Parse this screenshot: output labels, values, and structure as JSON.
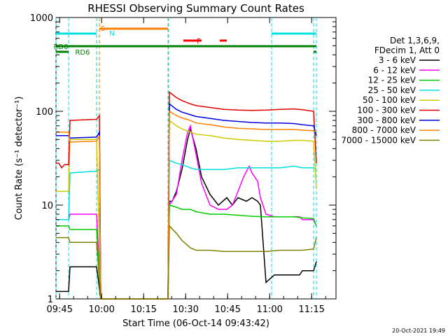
{
  "chart_data": {
    "type": "line",
    "title": "RHESSI Observing Summary Count Rates",
    "xlabel": "Start Time (06-Oct-14 09:43:42)",
    "ylabel": "Count Rate (s⁻¹ detector⁻¹)",
    "y_scale": "log",
    "ylim": [
      1,
      1000
    ],
    "xlim_minutes": [
      0,
      100
    ],
    "x_ticks": [
      {
        "label": "09:45",
        "t": 1.3
      },
      {
        "label": "10:00",
        "t": 16.3
      },
      {
        "label": "10:15",
        "t": 31.3
      },
      {
        "label": "10:30",
        "t": 46.3
      },
      {
        "label": "10:45",
        "t": 61.3
      },
      {
        "label": "11:00",
        "t": 76.3
      },
      {
        "label": "11:15",
        "t": 91.3
      }
    ],
    "y_ticks": [
      {
        "label": "1",
        "v": 1
      },
      {
        "label": "10",
        "v": 10
      },
      {
        "label": "100",
        "v": 100
      },
      {
        "label": "1000",
        "v": 1000
      }
    ],
    "legend": {
      "header": [
        "Det 1,3,6,9,",
        "FDecim 1, Att 0"
      ],
      "position": "right"
    },
    "series": [
      {
        "name": "3 - 6 keV",
        "color": "#000000",
        "points": [
          [
            0,
            1.2
          ],
          [
            4.5,
            1.2
          ],
          [
            5,
            2.2
          ],
          [
            14.5,
            2.2
          ],
          [
            16,
            1
          ],
          [
            40,
            1
          ],
          [
            40.5,
            11
          ],
          [
            41.5,
            11
          ],
          [
            43,
            14
          ],
          [
            45,
            24
          ],
          [
            47,
            50
          ],
          [
            48,
            65
          ],
          [
            50,
            40
          ],
          [
            52,
            20
          ],
          [
            55,
            13
          ],
          [
            58,
            10
          ],
          [
            61,
            12
          ],
          [
            63,
            10
          ],
          [
            65,
            12
          ],
          [
            68,
            11
          ],
          [
            70,
            12
          ],
          [
            72,
            11
          ],
          [
            73,
            10
          ],
          [
            75,
            1.5
          ],
          [
            78,
            1.8
          ],
          [
            87,
            1.8
          ],
          [
            88,
            2
          ],
          [
            92,
            2
          ],
          [
            93,
            2.5
          ]
        ]
      },
      {
        "name": "6 - 12 keV",
        "color": "#ff00ff",
        "points": [
          [
            0,
            7
          ],
          [
            4.5,
            7
          ],
          [
            5,
            8
          ],
          [
            14.5,
            8
          ],
          [
            16,
            1
          ],
          [
            40,
            1
          ],
          [
            40.5,
            10
          ],
          [
            43,
            13
          ],
          [
            45,
            30
          ],
          [
            47,
            60
          ],
          [
            48,
            70
          ],
          [
            50,
            35
          ],
          [
            52,
            17
          ],
          [
            55,
            10
          ],
          [
            58,
            9
          ],
          [
            61,
            9
          ],
          [
            63,
            10
          ],
          [
            65,
            14
          ],
          [
            67,
            20
          ],
          [
            69,
            26
          ],
          [
            70,
            22
          ],
          [
            72,
            18
          ],
          [
            73,
            12
          ],
          [
            75,
            8
          ],
          [
            78,
            7.5
          ],
          [
            87,
            7.5
          ],
          [
            88,
            7
          ],
          [
            92,
            7
          ],
          [
            93,
            6
          ]
        ]
      },
      {
        "name": "12 - 25 keV",
        "color": "#00cc00",
        "points": [
          [
            0,
            6
          ],
          [
            4.5,
            6
          ],
          [
            5,
            5.5
          ],
          [
            14.5,
            5.5
          ],
          [
            16,
            1
          ],
          [
            40,
            1
          ],
          [
            40.5,
            10
          ],
          [
            43,
            9.5
          ],
          [
            45,
            9
          ],
          [
            48,
            9
          ],
          [
            50,
            8.5
          ],
          [
            55,
            8
          ],
          [
            60,
            8
          ],
          [
            65,
            7.8
          ],
          [
            70,
            7.6
          ],
          [
            75,
            7.5
          ],
          [
            80,
            7.5
          ],
          [
            85,
            7.5
          ],
          [
            88,
            7.3
          ],
          [
            92,
            7.2
          ],
          [
            93,
            6
          ]
        ]
      },
      {
        "name": "25 - 50 keV",
        "color": "#00e0e0",
        "points": [
          [
            0,
            7
          ],
          [
            4.5,
            7
          ],
          [
            5,
            22
          ],
          [
            14.5,
            23
          ],
          [
            15.5,
            24
          ],
          [
            16,
            1
          ],
          [
            40,
            1
          ],
          [
            40.5,
            30
          ],
          [
            43,
            28
          ],
          [
            45,
            27
          ],
          [
            48,
            25
          ],
          [
            50,
            24
          ],
          [
            55,
            24
          ],
          [
            60,
            24
          ],
          [
            65,
            25
          ],
          [
            70,
            25
          ],
          [
            75,
            25
          ],
          [
            80,
            25
          ],
          [
            85,
            26
          ],
          [
            88,
            25
          ],
          [
            92,
            25
          ],
          [
            93,
            24
          ]
        ]
      },
      {
        "name": "50 - 100 keV",
        "color": "#cccc00",
        "points": [
          [
            0,
            14
          ],
          [
            4.5,
            14
          ],
          [
            5,
            50
          ],
          [
            14.5,
            50
          ],
          [
            16,
            1
          ],
          [
            40,
            1
          ],
          [
            40.5,
            80
          ],
          [
            43,
            70
          ],
          [
            45,
            65
          ],
          [
            48,
            60
          ],
          [
            50,
            57
          ],
          [
            55,
            55
          ],
          [
            60,
            52
          ],
          [
            65,
            50
          ],
          [
            70,
            49
          ],
          [
            75,
            48
          ],
          [
            80,
            48
          ],
          [
            85,
            49
          ],
          [
            88,
            49
          ],
          [
            92,
            48
          ],
          [
            93,
            15
          ]
        ]
      },
      {
        "name": "100 - 300 keV",
        "color": "#e00000",
        "points": [
          [
            0,
            28
          ],
          [
            1,
            28
          ],
          [
            2,
            25
          ],
          [
            3,
            27
          ],
          [
            4.5,
            27
          ],
          [
            5,
            80
          ],
          [
            14.5,
            82
          ],
          [
            15.5,
            90
          ],
          [
            16,
            1
          ],
          [
            40,
            1
          ],
          [
            40.5,
            160
          ],
          [
            43,
            140
          ],
          [
            45,
            130
          ],
          [
            48,
            120
          ],
          [
            50,
            115
          ],
          [
            55,
            110
          ],
          [
            60,
            105
          ],
          [
            65,
            103
          ],
          [
            70,
            102
          ],
          [
            75,
            103
          ],
          [
            80,
            105
          ],
          [
            85,
            106
          ],
          [
            88,
            104
          ],
          [
            92,
            100
          ],
          [
            93,
            28
          ]
        ]
      },
      {
        "name": "300 - 800 keV",
        "color": "#0000e0",
        "points": [
          [
            0,
            55
          ],
          [
            4.5,
            55
          ],
          [
            5,
            52
          ],
          [
            14.5,
            53
          ],
          [
            15.5,
            60
          ],
          [
            16,
            1
          ],
          [
            40,
            1
          ],
          [
            40.5,
            120
          ],
          [
            43,
            105
          ],
          [
            45,
            98
          ],
          [
            48,
            92
          ],
          [
            50,
            88
          ],
          [
            55,
            84
          ],
          [
            60,
            80
          ],
          [
            65,
            78
          ],
          [
            70,
            76
          ],
          [
            75,
            75
          ],
          [
            80,
            75
          ],
          [
            85,
            74
          ],
          [
            88,
            72
          ],
          [
            92,
            70
          ],
          [
            93,
            55
          ]
        ]
      },
      {
        "name": "800 - 7000 keV",
        "color": "#ff8000",
        "points": [
          [
            0,
            60
          ],
          [
            4.5,
            60
          ],
          [
            5,
            47
          ],
          [
            14.5,
            48
          ],
          [
            15.5,
            55
          ],
          [
            16,
            1
          ],
          [
            40,
            1
          ],
          [
            40.5,
            100
          ],
          [
            43,
            90
          ],
          [
            45,
            85
          ],
          [
            48,
            80
          ],
          [
            50,
            75
          ],
          [
            55,
            72
          ],
          [
            60,
            68
          ],
          [
            65,
            66
          ],
          [
            70,
            65
          ],
          [
            75,
            64
          ],
          [
            80,
            64
          ],
          [
            85,
            64
          ],
          [
            88,
            63
          ],
          [
            92,
            62
          ],
          [
            93,
            60
          ]
        ]
      },
      {
        "name": "7000 - 15000 keV",
        "color": "#808000",
        "points": [
          [
            0,
            4.5
          ],
          [
            4.5,
            4.5
          ],
          [
            5,
            4
          ],
          [
            14.5,
            4
          ],
          [
            16,
            1
          ],
          [
            40,
            1
          ],
          [
            40.5,
            6
          ],
          [
            43,
            5
          ],
          [
            45,
            4.2
          ],
          [
            48,
            3.5
          ],
          [
            50,
            3.3
          ],
          [
            55,
            3.3
          ],
          [
            60,
            3.2
          ],
          [
            65,
            3.2
          ],
          [
            70,
            3.2
          ],
          [
            75,
            3.2
          ],
          [
            80,
            3.3
          ],
          [
            85,
            3.3
          ],
          [
            88,
            3.3
          ],
          [
            92,
            3.4
          ],
          [
            93,
            4.5
          ]
        ]
      }
    ],
    "markers": [
      {
        "label": "S",
        "color": "#ff8000",
        "t": 15.5,
        "style": "dashed"
      },
      {
        "label": "N",
        "color": "#00e0e0",
        "t": 14.5,
        "style": "dashed"
      },
      {
        "label": "F",
        "color": "#ff0000"
      },
      {
        "label": "RD0",
        "color": "#008000"
      },
      {
        "label": "RD6",
        "color": "#008000"
      }
    ],
    "state_bars": [
      {
        "color": "#00e0e0",
        "segments": [
          [
            0,
            14.5
          ],
          [
            77,
            93
          ]
        ]
      },
      {
        "color": "#ff8000",
        "segments": [
          [
            15.5,
            40
          ]
        ]
      },
      {
        "color": "#ff0000",
        "segments": [
          [
            45.5,
            52
          ],
          [
            58.5,
            61
          ]
        ]
      },
      {
        "color": "#008000",
        "segments": [
          [
            0,
            93
          ]
        ]
      },
      {
        "color": "#008000",
        "segments": [
          [
            0,
            4.5
          ],
          [
            92,
            93
          ]
        ]
      }
    ],
    "vlines": [
      {
        "t": 0,
        "color": "#00e0e0"
      },
      {
        "t": 4.5,
        "color": "#00e0e0"
      },
      {
        "t": 14.5,
        "color": "#00e0e0"
      },
      {
        "t": 15.5,
        "color": "#ff8000"
      },
      {
        "t": 40,
        "color": "#ff8000"
      },
      {
        "t": 40.2,
        "color": "#00e0e0"
      },
      {
        "t": 77,
        "color": "#00e0e0"
      },
      {
        "t": 92,
        "color": "#00e0e0"
      },
      {
        "t": 93,
        "color": "#00e0e0"
      }
    ]
  },
  "footer": {
    "timestamp": "20-Oct-2021 19:49"
  }
}
